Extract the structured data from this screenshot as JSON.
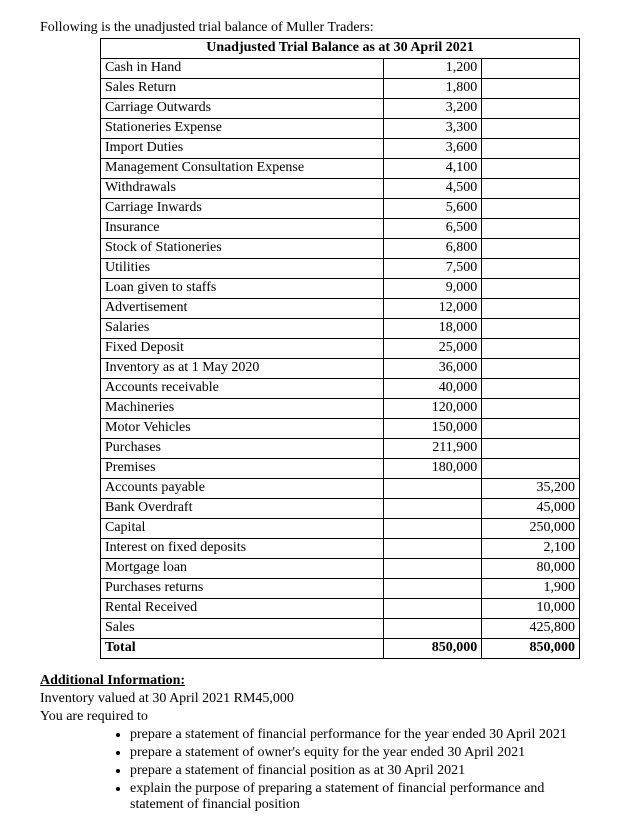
{
  "intro": "Following is the unadjusted trial balance of Muller Traders:",
  "table": {
    "title": "Unadjusted Trial Balance as at 30 April 2021",
    "rows": [
      {
        "acct": "Cash in Hand",
        "dr": "1,200",
        "cr": ""
      },
      {
        "acct": "Sales Return",
        "dr": "1,800",
        "cr": ""
      },
      {
        "acct": "Carriage Outwards",
        "dr": "3,200",
        "cr": ""
      },
      {
        "acct": "Stationeries Expense",
        "dr": "3,300",
        "cr": ""
      },
      {
        "acct": "Import Duties",
        "dr": "3,600",
        "cr": ""
      },
      {
        "acct": "Management Consultation Expense",
        "dr": "4,100",
        "cr": ""
      },
      {
        "acct": "Withdrawals",
        "dr": "4,500",
        "cr": ""
      },
      {
        "acct": "Carriage Inwards",
        "dr": "5,600",
        "cr": ""
      },
      {
        "acct": "Insurance",
        "dr": "6,500",
        "cr": ""
      },
      {
        "acct": "Stock of Stationeries",
        "dr": "6,800",
        "cr": ""
      },
      {
        "acct": "Utilities",
        "dr": "7,500",
        "cr": ""
      },
      {
        "acct": "Loan given to staffs",
        "dr": "9,000",
        "cr": ""
      },
      {
        "acct": "Advertisement",
        "dr": "12,000",
        "cr": ""
      },
      {
        "acct": "Salaries",
        "dr": "18,000",
        "cr": ""
      },
      {
        "acct": "Fixed Deposit",
        "dr": "25,000",
        "cr": ""
      },
      {
        "acct": "Inventory as at 1 May 2020",
        "dr": "36,000",
        "cr": ""
      },
      {
        "acct": "Accounts receivable",
        "dr": "40,000",
        "cr": ""
      },
      {
        "acct": "Machineries",
        "dr": "120,000",
        "cr": ""
      },
      {
        "acct": "Motor Vehicles",
        "dr": "150,000",
        "cr": ""
      },
      {
        "acct": "Purchases",
        "dr": "211,900",
        "cr": ""
      },
      {
        "acct": "Premises",
        "dr": "180,000",
        "cr": ""
      },
      {
        "acct": "Accounts payable",
        "dr": "",
        "cr": "35,200"
      },
      {
        "acct": "Bank Overdraft",
        "dr": "",
        "cr": "45,000"
      },
      {
        "acct": "Capital",
        "dr": "",
        "cr": "250,000"
      },
      {
        "acct": "Interest on fixed deposits",
        "dr": "",
        "cr": "2,100"
      },
      {
        "acct": "Mortgage loan",
        "dr": "",
        "cr": "80,000"
      },
      {
        "acct": "Purchases returns",
        "dr": "",
        "cr": "1,900"
      },
      {
        "acct": "Rental Received",
        "dr": "",
        "cr": "10,000"
      },
      {
        "acct": "Sales",
        "dr": "",
        "cr": "425,800"
      }
    ],
    "total": {
      "label": "Total",
      "dr": "850,000",
      "cr": "850,000"
    }
  },
  "additional": {
    "heading": "Additional Information:",
    "inventory": "Inventory valued at 30 April 2021 RM45,000",
    "required_intro": "You are required to",
    "items": [
      "prepare a statement of financial performance for the year ended 30 April 2021",
      "prepare a statement of owner's equity for the year ended 30 April 2021",
      "prepare a statement of financial position as at 30 April 2021",
      "explain the purpose of preparing a statement of financial performance and statement of financial position"
    ]
  }
}
